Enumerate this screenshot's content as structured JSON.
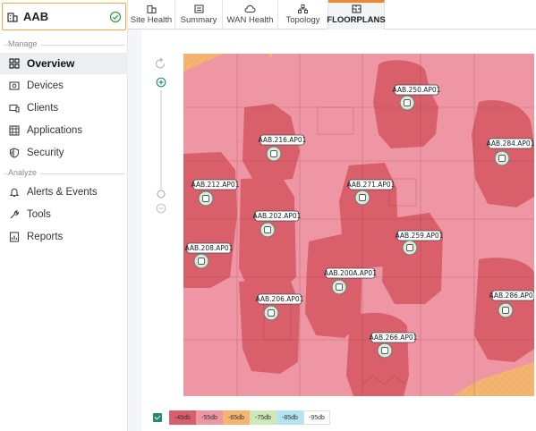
{
  "site": {
    "name": "AAB"
  },
  "sidebar": {
    "section_manage": "Manage",
    "section_analyze": "Analyze",
    "items": [
      {
        "label": "Overview",
        "icon": "grid-icon"
      },
      {
        "label": "Devices",
        "icon": "devices-icon"
      },
      {
        "label": "Clients",
        "icon": "clients-icon"
      },
      {
        "label": "Applications",
        "icon": "applications-icon"
      },
      {
        "label": "Security",
        "icon": "shield-icon"
      },
      {
        "label": "Alerts & Events",
        "icon": "bell-icon"
      },
      {
        "label": "Tools",
        "icon": "wrench-icon"
      },
      {
        "label": "Reports",
        "icon": "reports-icon"
      }
    ]
  },
  "tabs": [
    {
      "label": "Site Health",
      "icon": "building-icon"
    },
    {
      "label": "Summary",
      "icon": "summary-icon"
    },
    {
      "label": "WAN Health",
      "icon": "cloud-icon"
    },
    {
      "label": "Topology",
      "icon": "topology-icon"
    },
    {
      "label": "FLOORPLANS",
      "icon": "floorplan-icon"
    }
  ],
  "active_tab": "FLOORPLANS",
  "access_points": [
    {
      "name": "AAB.250.AP01"
    },
    {
      "name": "AAB.216.AP01"
    },
    {
      "name": "AAB.284.AP01"
    },
    {
      "name": "AAB.212.AP01"
    },
    {
      "name": "AAB.271.AP01"
    },
    {
      "name": "AAB.202.AP01"
    },
    {
      "name": "AAB.259.AP01"
    },
    {
      "name": "AAB.208.AP01"
    },
    {
      "name": "AAB.200A.AP01"
    },
    {
      "name": "AAB.286.AP01"
    },
    {
      "name": "AAB.206.AP01"
    },
    {
      "name": "AAB.266.AP01"
    }
  ],
  "legend": [
    {
      "label": "-45db",
      "color": "#d9606a"
    },
    {
      "label": "-55db",
      "color": "#ef96a4"
    },
    {
      "label": "-65db",
      "color": "#f3b56f"
    },
    {
      "label": "-75db",
      "color": "#cfe8b8"
    },
    {
      "label": "-85db",
      "color": "#b6e3f2"
    },
    {
      "label": "-95db",
      "color": "#ffffff"
    }
  ]
}
